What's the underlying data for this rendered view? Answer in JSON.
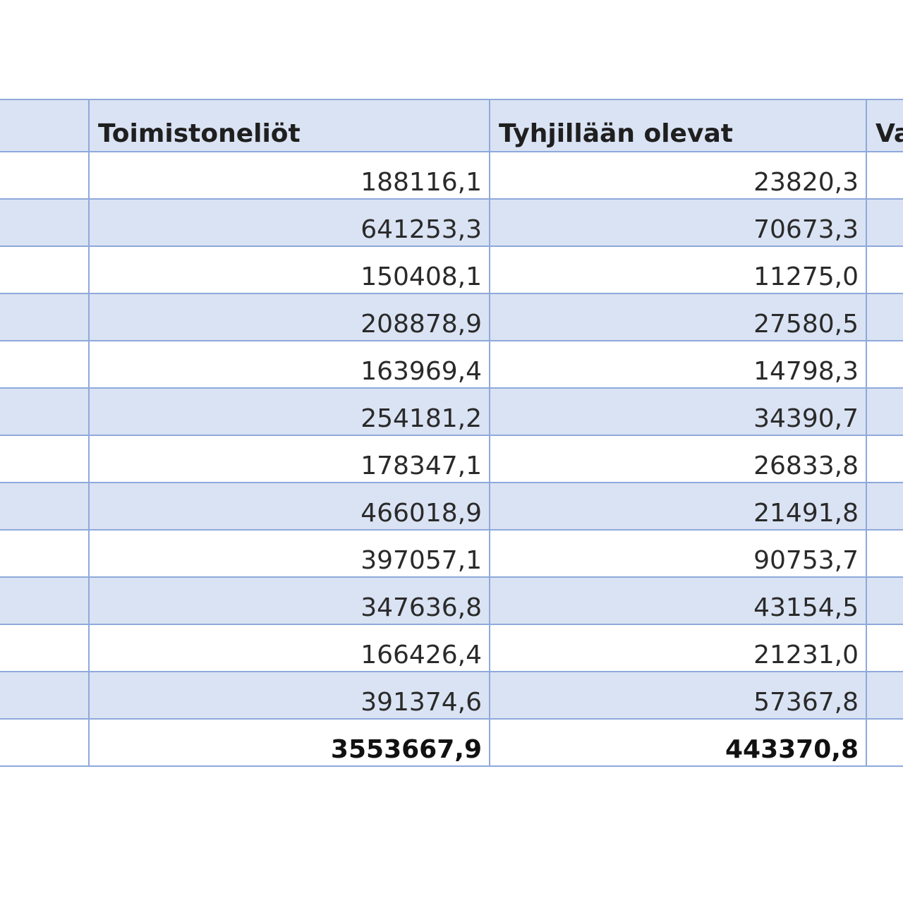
{
  "table": {
    "headers": [
      "",
      "Toimistoneliöt",
      "Tyhjillään olevat",
      "Va"
    ],
    "rows": [
      {
        "toimistoneliot": "188116,1",
        "tyhjillaan": "23820,3"
      },
      {
        "toimistoneliot": "641253,3",
        "tyhjillaan": "70673,3"
      },
      {
        "toimistoneliot": "150408,1",
        "tyhjillaan": "11275,0"
      },
      {
        "toimistoneliot": "208878,9",
        "tyhjillaan": "27580,5"
      },
      {
        "toimistoneliot": "163969,4",
        "tyhjillaan": "14798,3"
      },
      {
        "toimistoneliot": "254181,2",
        "tyhjillaan": "34390,7"
      },
      {
        "toimistoneliot": "178347,1",
        "tyhjillaan": "26833,8"
      },
      {
        "toimistoneliot": "466018,9",
        "tyhjillaan": "21491,8"
      },
      {
        "toimistoneliot": "397057,1",
        "tyhjillaan": "90753,7"
      },
      {
        "toimistoneliot": "347636,8",
        "tyhjillaan": "43154,5"
      },
      {
        "toimistoneliot": "166426,4",
        "tyhjillaan": "21231,0"
      },
      {
        "toimistoneliot": "391374,6",
        "tyhjillaan": "57367,8"
      }
    ],
    "total": {
      "toimistoneliot": "3553667,9",
      "tyhjillaan": "443370,8"
    }
  },
  "colors": {
    "band": "#dae3f3",
    "grid": "#8ea9db",
    "background": "#ffffff"
  }
}
